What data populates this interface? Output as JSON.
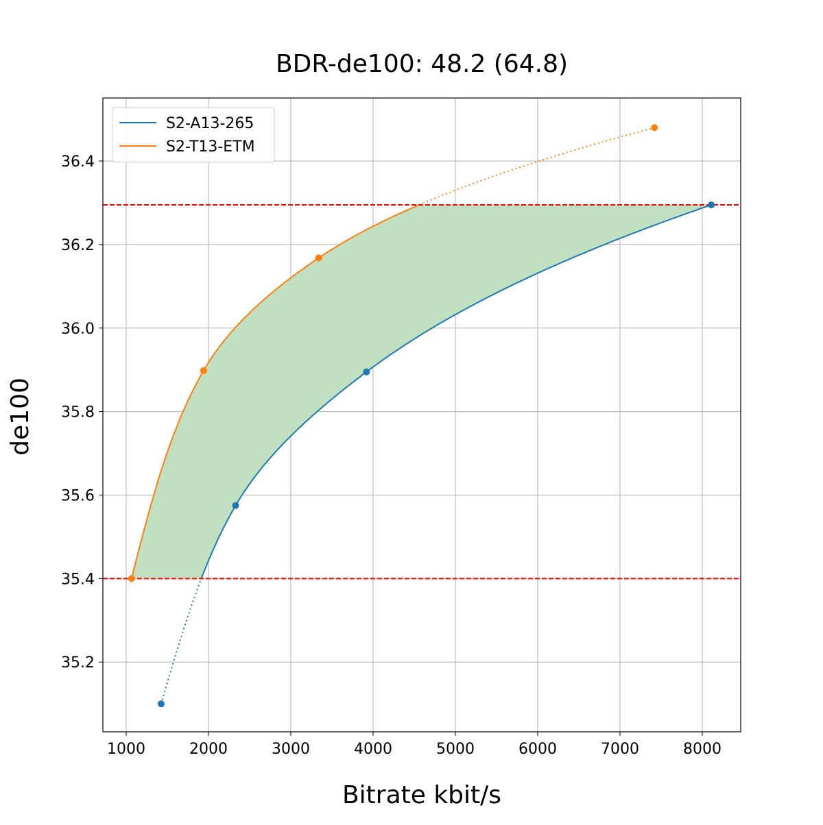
{
  "chart_data": {
    "type": "line",
    "title": "BDR-de100: 48.2 (64.8)",
    "xlabel": "Bitrate kbit/s",
    "ylabel": "de100",
    "xlim": [
      717,
      8467
    ],
    "ylim": [
      35.033,
      36.551
    ],
    "xticks": [
      1000,
      2000,
      3000,
      4000,
      5000,
      6000,
      7000,
      8000
    ],
    "yticks": [
      35.2,
      35.4,
      35.6,
      35.8,
      36.0,
      36.2,
      36.4
    ],
    "grid": true,
    "legend_position": "top-left",
    "series": [
      {
        "name": "S2-A13-265",
        "color": "#1f77b4",
        "x": [
          1425,
          2330,
          3920,
          8110
        ],
        "y": [
          35.1,
          35.575,
          35.895,
          36.295
        ]
      },
      {
        "name": "S2-T13-ETM",
        "color": "#ff7f0e",
        "x": [
          1065,
          1940,
          3340,
          7420
        ],
        "y": [
          35.4,
          35.898,
          36.168,
          36.48
        ]
      }
    ],
    "reference_lines": {
      "y": [
        35.4,
        36.295
      ],
      "color": "#ff0000",
      "style": "dashed"
    },
    "fill": {
      "color": "#c1dfc1",
      "between": "series",
      "y_range": [
        35.4,
        36.295
      ]
    }
  }
}
